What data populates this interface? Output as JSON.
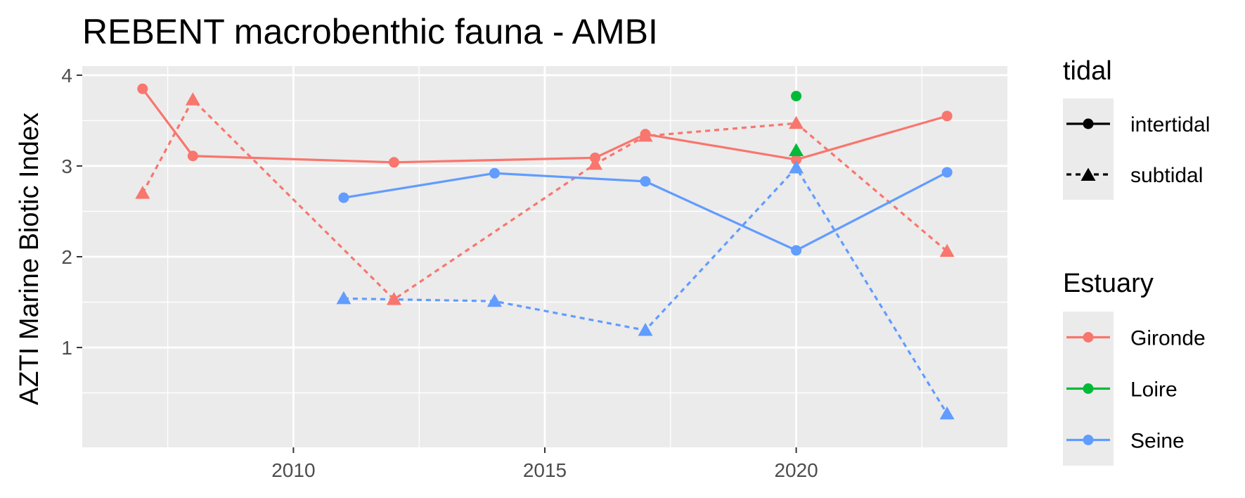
{
  "chart_data": {
    "type": "line",
    "title": "REBENT macrobenthic fauna - AMBI",
    "xlabel": "",
    "ylabel": "AZTI Marine Biotic Index",
    "xlim": [
      2005.8,
      2024.2
    ],
    "ylim": [
      -0.1,
      4.1
    ],
    "x_ticks": [
      2010,
      2015,
      2020
    ],
    "x_tick_labels": [
      "2010",
      "2015",
      "2020"
    ],
    "y_ticks": [
      1,
      2,
      3,
      4
    ],
    "y_tick_labels": [
      "1",
      "2",
      "3",
      "4"
    ],
    "grid": true,
    "legend_position": "right",
    "legends": [
      {
        "title": "tidal",
        "items": [
          {
            "label": "intertidal",
            "linetype": "solid",
            "shape": "circle"
          },
          {
            "label": "subtidal",
            "linetype": "dashed",
            "shape": "triangle"
          }
        ]
      },
      {
        "title": "Estuary",
        "items": [
          {
            "label": "Gironde",
            "color": "#F8766D"
          },
          {
            "label": "Loire",
            "color": "#00BA38"
          },
          {
            "label": "Seine",
            "color": "#619CFF"
          }
        ]
      }
    ],
    "series": [
      {
        "estuary": "Gironde",
        "tidal": "intertidal",
        "color": "#F8766D",
        "x": [
          2007,
          2008,
          2012,
          2016,
          2017,
          2020,
          2023
        ],
        "y": [
          3.85,
          3.11,
          3.04,
          3.09,
          3.35,
          3.07,
          3.55
        ]
      },
      {
        "estuary": "Gironde",
        "tidal": "subtidal",
        "color": "#F8766D",
        "x": [
          2007,
          2008,
          2012,
          2016,
          2017,
          2020,
          2023
        ],
        "y": [
          2.7,
          3.73,
          1.53,
          3.02,
          3.33,
          3.47,
          2.06
        ]
      },
      {
        "estuary": "Loire",
        "tidal": "intertidal",
        "color": "#00BA38",
        "x": [
          2020
        ],
        "y": [
          3.77
        ]
      },
      {
        "estuary": "Loire",
        "tidal": "subtidal",
        "color": "#00BA38",
        "x": [
          2020
        ],
        "y": [
          3.17
        ]
      },
      {
        "estuary": "Seine",
        "tidal": "intertidal",
        "color": "#619CFF",
        "x": [
          2011,
          2014,
          2017,
          2020,
          2023
        ],
        "y": [
          2.65,
          2.92,
          2.83,
          2.07,
          2.93
        ]
      },
      {
        "estuary": "Seine",
        "tidal": "subtidal",
        "color": "#619CFF",
        "x": [
          2011,
          2014,
          2017,
          2020,
          2023
        ],
        "y": [
          1.54,
          1.51,
          1.19,
          2.98,
          0.27
        ]
      }
    ]
  }
}
